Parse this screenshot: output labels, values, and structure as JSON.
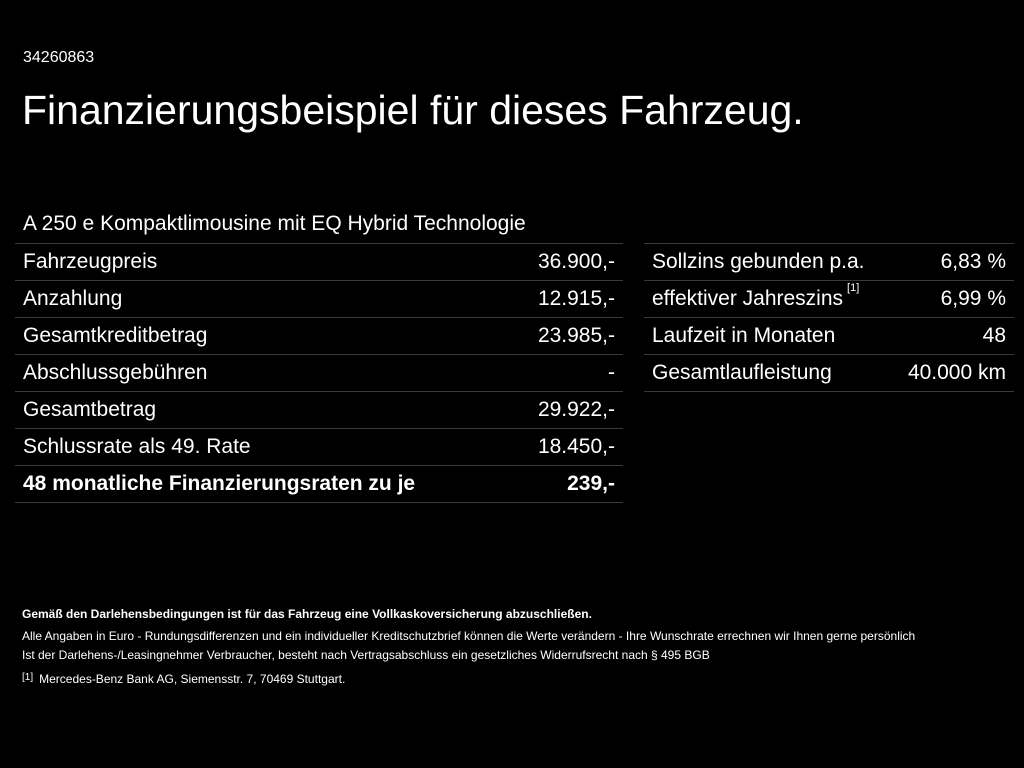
{
  "reference_number": "34260863",
  "headline": "Finanzierungsbeispiel für dieses Fahrzeug.",
  "vehicle_name": "A 250 e Kompaktlimousine mit EQ Hybrid Technologie",
  "left_table": [
    {
      "label": "Fahrzeugpreis",
      "value": "36.900,-"
    },
    {
      "label": "Anzahlung",
      "value": "12.915,-"
    },
    {
      "label": "Gesamtkreditbetrag",
      "value": "23.985,-"
    },
    {
      "label": "Abschlussgebühren",
      "value": "-"
    },
    {
      "label": "Gesamtbetrag",
      "value": "29.922,-"
    },
    {
      "label": "Schlussrate als 49. Rate",
      "value": "18.450,-"
    },
    {
      "label": "48 monatliche Finanzierungsraten zu je",
      "value": "239,-"
    }
  ],
  "right_table": [
    {
      "label": "Sollzins gebunden p.a.",
      "value": "6,83 %",
      "sup": ""
    },
    {
      "label": "effektiver Jahreszins",
      "value": "6,99 %",
      "sup": "[1]"
    },
    {
      "label": "Laufzeit in Monaten",
      "value": "48",
      "sup": ""
    },
    {
      "label": "Gesamtlaufleistung",
      "value": "40.000 km",
      "sup": ""
    }
  ],
  "footnotes": {
    "insurance_note": "Gemäß den Darlehensbedingungen ist für das Fahrzeug eine Vollkaskoversicherung abzuschließen.",
    "currency_note": "Alle Angaben in Euro - Rundungsdifferenzen und ein individueller Kreditschutzbrief können die Werte verändern - Ihre Wunschrate errechnen wir Ihnen gerne persönlich",
    "withdrawal_note": "Ist der Darlehens-/Leasingnehmer Verbraucher, besteht nach Vertragsabschluss ein gesetzliches Widerrufsrecht nach § 495 BGB",
    "ref_mark": "[1]",
    "ref_text": "Mercedes-Benz Bank AG, Siemensstr. 7, 70469 Stuttgart."
  },
  "colors": {
    "background": "#000000",
    "text": "#ffffff",
    "divider": "#3a3a3a"
  }
}
